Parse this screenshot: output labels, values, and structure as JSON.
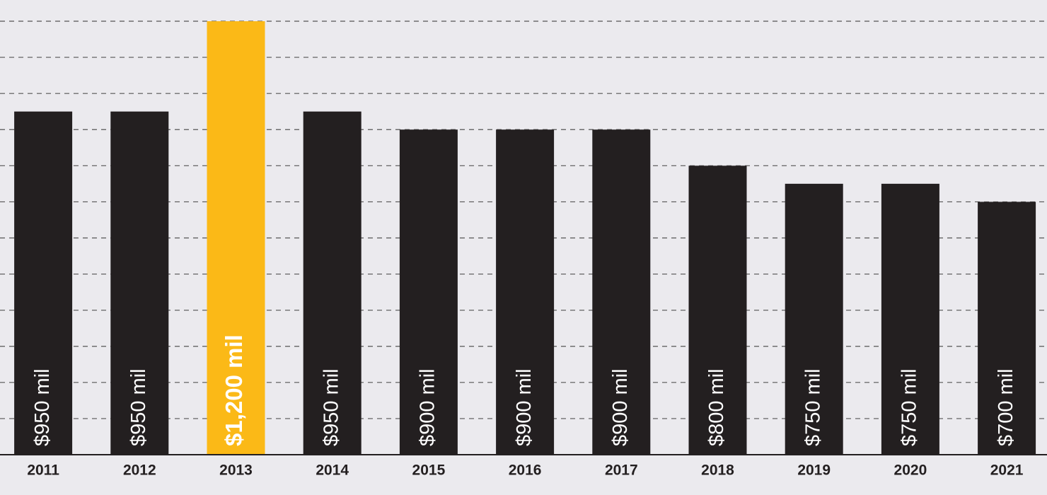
{
  "chart_data": {
    "type": "bar",
    "categories": [
      "2011",
      "2012",
      "2013",
      "2014",
      "2015",
      "2016",
      "2017",
      "2018",
      "2019",
      "2020",
      "2021"
    ],
    "values": [
      950,
      950,
      1200,
      950,
      900,
      900,
      900,
      800,
      750,
      750,
      700
    ],
    "value_labels": [
      "$950 mil",
      "$950 mil",
      "$1,200 mil",
      "$950 mil",
      "$900 mil",
      "$900 mil",
      "$900 mil",
      "$800 mil",
      "$750 mil",
      "$750 mil",
      "$700 mil"
    ],
    "colors": [
      "#231f20",
      "#231f20",
      "#fbb917",
      "#231f20",
      "#231f20",
      "#231f20",
      "#231f20",
      "#231f20",
      "#231f20",
      "#231f20",
      "#231f20"
    ],
    "ylim": [
      0,
      1200
    ],
    "yticks": [
      100,
      200,
      300,
      400,
      500,
      600,
      700,
      800,
      900,
      1000,
      1100,
      1200
    ],
    "grid": true
  }
}
